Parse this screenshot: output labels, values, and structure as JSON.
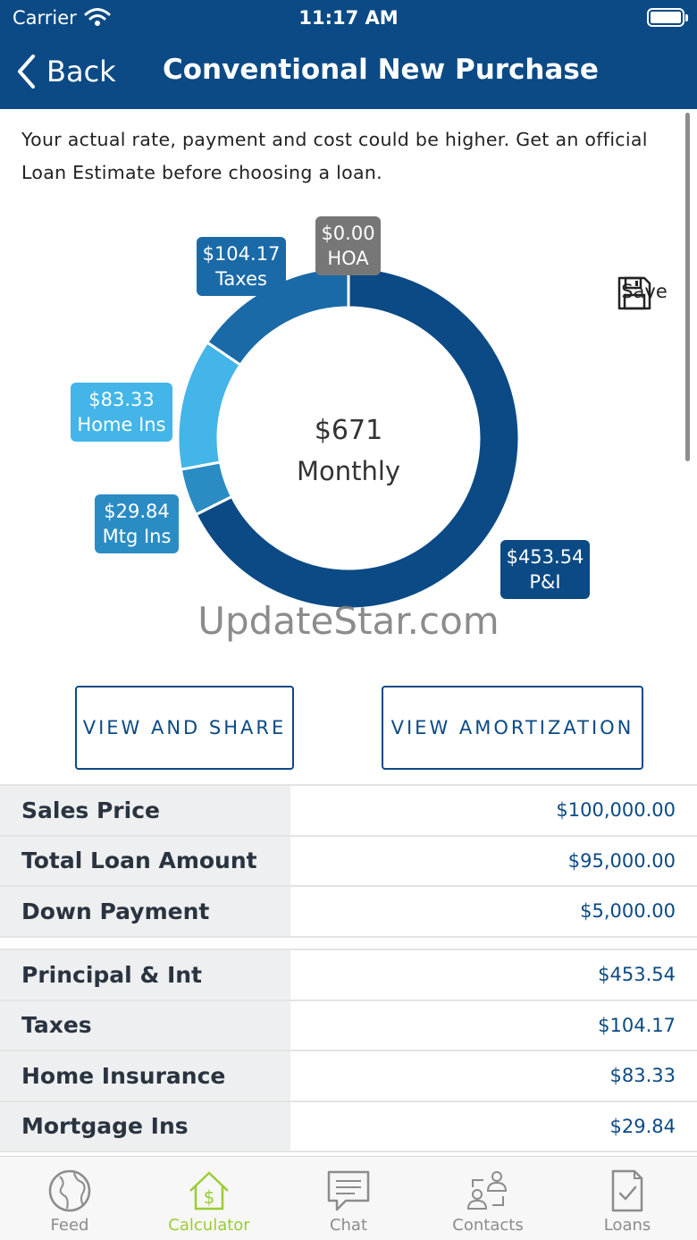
{
  "status_bar": {
    "carrier": "Carrier",
    "time": "11:17 AM"
  },
  "nav": {
    "back_label": "Back",
    "title": "Conventional New Purchase"
  },
  "disclaimer": "Your actual rate, payment and cost could be higher. Get an official Loan Estimate before choosing a loan.",
  "chart_data": {
    "type": "pie",
    "style": "donut",
    "center_value": "$671",
    "center_label": "Monthly",
    "slices": [
      {
        "label": "P&I",
        "value": 453.54,
        "display": "$453.54",
        "color": "#0b4a85"
      },
      {
        "label": "Mtg Ins",
        "value": 29.84,
        "display": "$29.84",
        "color": "#2b8cc4"
      },
      {
        "label": "Home Ins",
        "value": 83.33,
        "display": "$83.33",
        "color": "#43b5e8"
      },
      {
        "label": "Taxes",
        "value": 104.17,
        "display": "$104.17",
        "color": "#1a6aa8"
      },
      {
        "label": "HOA",
        "value": 0.0,
        "display": "$0.00",
        "color": "#777777"
      }
    ]
  },
  "save": {
    "label": "Save",
    "icon": "floppy-disk-icon"
  },
  "watermark": "UpdateStar.com",
  "buttons": {
    "view_share": "VIEW AND SHARE",
    "view_amortization": "VIEW AMORTIZATION"
  },
  "loan_table": [
    {
      "label": "Sales Price",
      "value": "$100,000.00"
    },
    {
      "label": "Total Loan Amount",
      "value": "$95,000.00"
    },
    {
      "label": "Down Payment",
      "value": "$5,000.00"
    }
  ],
  "payment_table": [
    {
      "label": "Principal & Int",
      "value": "$453.54"
    },
    {
      "label": "Taxes",
      "value": "$104.17"
    },
    {
      "label": "Home Insurance",
      "value": "$83.33"
    },
    {
      "label": "Mortgage Ins",
      "value": "$29.84"
    }
  ],
  "tabs": [
    {
      "label": "Feed",
      "icon": "globe-icon",
      "active": false
    },
    {
      "label": "Calculator",
      "icon": "house-dollar-icon",
      "active": true
    },
    {
      "label": "Chat",
      "icon": "chat-bubble-icon",
      "active": false
    },
    {
      "label": "Contacts",
      "icon": "contacts-icon",
      "active": false
    },
    {
      "label": "Loans",
      "icon": "document-check-icon",
      "active": false
    }
  ],
  "colors": {
    "brand": "#0b4a85",
    "active_tab": "#9acd32"
  }
}
